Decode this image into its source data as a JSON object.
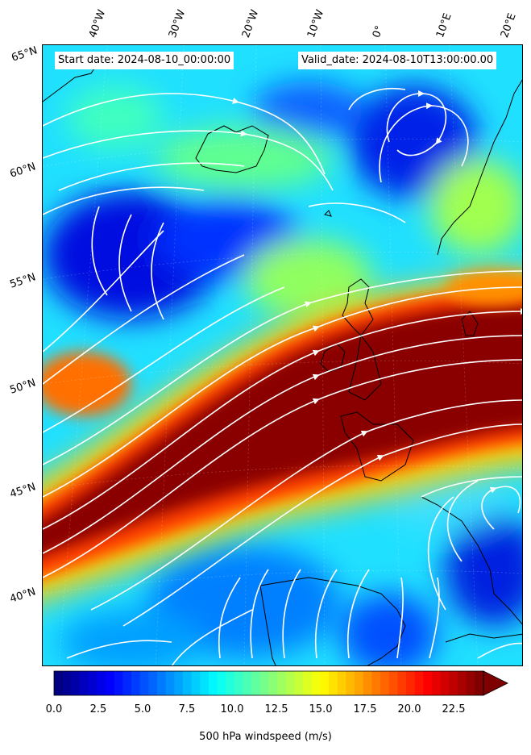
{
  "map": {
    "start_text": "Start date: 2024-08-10_00:00:00",
    "valid_text": "Valid_date: 2024-08-10T13:00:00.00",
    "lon_labels": [
      "40°W",
      "30°W",
      "20°W",
      "10°W",
      "0°",
      "10°E",
      "20°E"
    ],
    "lat_labels": [
      "65°N",
      "60°N",
      "55°N",
      "50°N",
      "45°N",
      "40°N"
    ],
    "field": "500 hPa windspeed",
    "colors": {
      "coastline": "#000000",
      "streamline": "#ffffff",
      "jet_core": "#7f0000"
    }
  },
  "colorbar": {
    "label": "500 hPa windspeed (m/s)",
    "ticks": [
      "0.0",
      "2.5",
      "5.0",
      "7.5",
      "10.0",
      "12.5",
      "15.0",
      "17.5",
      "20.0",
      "22.5"
    ],
    "min": 0,
    "max": 25,
    "extend": "max",
    "colormap": "jet"
  }
}
